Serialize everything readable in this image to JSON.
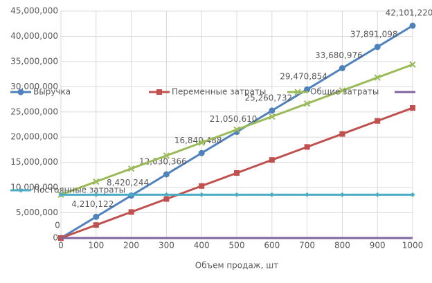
{
  "chart_data": {
    "type": "line",
    "x_label": "Объем продаж, шт",
    "x": [
      0,
      100,
      200,
      300,
      400,
      500,
      600,
      700,
      800,
      900,
      1000
    ],
    "xlim": [
      0,
      1000
    ],
    "xticks": [
      0,
      100,
      200,
      300,
      400,
      500,
      600,
      700,
      800,
      900,
      1000
    ],
    "ylim": [
      0,
      45000000
    ],
    "yticks": [
      0,
      {
        "value": 5000000,
        "label": "5,000,000"
      },
      {
        "value": 10000000,
        "label": "10,000,000"
      },
      {
        "value": 15000000,
        "label": "15,000,000"
      },
      {
        "value": 20000000,
        "label": "20,000,000"
      },
      {
        "value": 25000000,
        "label": "25,000,000"
      },
      {
        "value": 30000000,
        "label": "30,000,000"
      },
      {
        "value": 35000000,
        "label": "35,000,000"
      },
      {
        "value": 40000000,
        "label": "40,000,000"
      },
      {
        "value": 45000000,
        "label": "45,000,000"
      }
    ],
    "grid": true,
    "series": [
      {
        "name": "Выручка",
        "color": "#4f81bd",
        "marker": "circle",
        "values": [
          0,
          4210122,
          8420244,
          12630366,
          16840488,
          21050610,
          25260732,
          29470854,
          33680976,
          37891098,
          42101220
        ],
        "value_labels": [
          "0",
          "4,210,122",
          "8,420,244",
          "12,630,366",
          "16,840,488",
          "21,050,610",
          "25,260,732",
          "29,470,854",
          "33,680,976",
          "37,891,098",
          "42,101,220"
        ]
      },
      {
        "name": "Переменные затраты",
        "color": "#c0504d",
        "marker": "square",
        "values": [
          0,
          2580000,
          5160000,
          7740000,
          10320000,
          12900000,
          15480000,
          18060000,
          20640000,
          23220000,
          25800000
        ]
      },
      {
        "name": "Общие затраты",
        "color": "#9bbb59",
        "marker": "x",
        "values": [
          8600000,
          11180000,
          13760000,
          16340000,
          18920000,
          21500000,
          24080000,
          26660000,
          29240000,
          31820000,
          34400000
        ]
      },
      {
        "color": "#8064a2",
        "marker": "none",
        "values": [
          0,
          0,
          0,
          0,
          0,
          0,
          0,
          0,
          0,
          0,
          0
        ]
      },
      {
        "name": "Постоянные затраты",
        "color": "#4bacc6",
        "marker": "diamond",
        "values": [
          8600000,
          8600000,
          8600000,
          8600000,
          8600000,
          8600000,
          8600000,
          8600000,
          8600000,
          8600000,
          8600000
        ]
      }
    ]
  }
}
